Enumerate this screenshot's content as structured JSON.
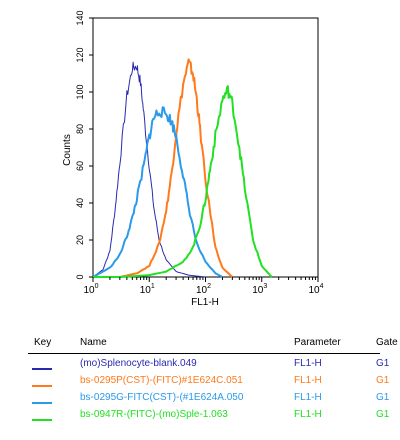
{
  "chart_data": {
    "type": "line",
    "xlabel": "FL1-H",
    "ylabel": "Counts",
    "x_scale": "log",
    "xlim": [
      1,
      10000
    ],
    "ylim": [
      0,
      140
    ],
    "xticks": [
      {
        "base": "10",
        "exp": "0"
      },
      {
        "base": "10",
        "exp": "1"
      },
      {
        "base": "10",
        "exp": "2"
      },
      {
        "base": "10",
        "exp": "3"
      },
      {
        "base": "10",
        "exp": "4"
      }
    ],
    "yticks": [
      "0",
      "20",
      "40",
      "60",
      "80",
      "100",
      "120",
      "140"
    ],
    "series": [
      {
        "name": "(mo)Splenocyte-blank.049",
        "color": "#2a2ab0",
        "x": [
          1,
          1.5,
          2,
          2.5,
          3,
          4,
          5,
          6,
          7,
          8,
          10,
          12,
          15,
          20,
          30,
          50,
          100
        ],
        "y": [
          0,
          4,
          14,
          38,
          62,
          98,
          113,
          114,
          105,
          88,
          60,
          38,
          20,
          9,
          3,
          1,
          0
        ]
      },
      {
        "name": "bs-0295P(CST)-(FITC)#1E624C.051",
        "color": "#ff7a1a",
        "x": [
          3,
          6,
          10,
          15,
          20,
          25,
          30,
          40,
          50,
          60,
          70,
          80,
          100,
          150,
          200,
          300
        ],
        "y": [
          0,
          2,
          6,
          18,
          36,
          56,
          78,
          104,
          116,
          110,
          96,
          80,
          52,
          16,
          5,
          0
        ]
      },
      {
        "name": "bs-0295G-FITC(CST)-(#1E624A.050",
        "color": "#2a9aea",
        "x": [
          1,
          2,
          3,
          4,
          5,
          6,
          8,
          10,
          12,
          15,
          20,
          25,
          30,
          40,
          50,
          70,
          100,
          150,
          200
        ],
        "y": [
          0,
          5,
          12,
          22,
          32,
          42,
          60,
          76,
          86,
          90,
          88,
          84,
          76,
          55,
          38,
          18,
          8,
          2,
          0
        ]
      },
      {
        "name": "bs-0947R-(FITC)-(mo)Sple-1.063",
        "color": "#22e022",
        "x": [
          1,
          3,
          10,
          20,
          40,
          60,
          80,
          100,
          120,
          150,
          200,
          250,
          300,
          400,
          500,
          700,
          1000,
          1500
        ],
        "y": [
          0,
          0,
          1,
          3,
          8,
          16,
          28,
          42,
          58,
          76,
          96,
          101,
          94,
          70,
          48,
          20,
          6,
          0
        ]
      }
    ]
  },
  "legend": {
    "headers": {
      "key": "Key",
      "name": "Name",
      "parameter": "Parameter",
      "gate": "Gate"
    },
    "rows": [
      {
        "name": "(mo)Splenocyte-blank.049",
        "parameter": "FL1-H",
        "gate": "G1",
        "color": "#2a2ab0"
      },
      {
        "name": "bs-0295P(CST)-(FITC)#1E624C.051",
        "parameter": "FL1-H",
        "gate": "G1",
        "color": "#ff7a1a"
      },
      {
        "name": "bs-0295G-FITC(CST)-(#1E624A.050",
        "parameter": "FL1-H",
        "gate": "G1",
        "color": "#2a9aea"
      },
      {
        "name": "bs-0947R-(FITC)-(mo)Sple-1.063",
        "parameter": "FL1-H",
        "gate": "G1",
        "color": "#22e022"
      }
    ]
  }
}
